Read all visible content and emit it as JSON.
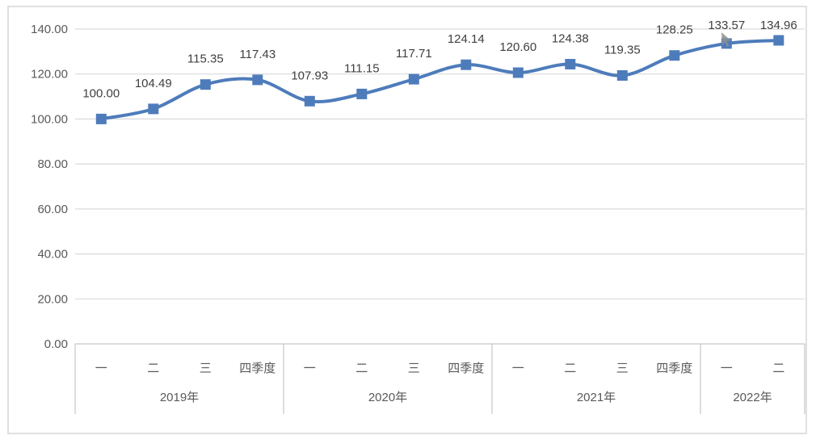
{
  "chart_data": {
    "type": "line",
    "title": "",
    "smooth": true,
    "marker": "square",
    "grid": true,
    "series": [
      {
        "values": [
          100.0,
          104.49,
          115.35,
          117.43,
          107.93,
          111.15,
          117.71,
          124.14,
          120.6,
          124.38,
          119.35,
          128.25,
          133.57,
          134.96
        ],
        "data_labels": [
          "100.00",
          "104.49",
          "115.35",
          "117.43",
          "107.93",
          "111.15",
          "117.71",
          "124.14",
          "120.60",
          "124.38",
          "119.35",
          "128.25",
          "133.57",
          "134.96"
        ]
      }
    ],
    "x_axis": {
      "quarter_labels": [
        "一",
        "二",
        "三",
        "四季度",
        "一",
        "二",
        "三",
        "四季度",
        "一",
        "二",
        "三",
        "四季度",
        "一",
        "二"
      ],
      "year_groups": [
        {
          "label": "2019年",
          "count": 4
        },
        {
          "label": "2020年",
          "count": 4
        },
        {
          "label": "2021年",
          "count": 4
        },
        {
          "label": "2022年",
          "count": 2
        }
      ]
    },
    "y_axis": {
      "min": 0,
      "max": 140,
      "step": 20,
      "tick_labels": [
        "0.00",
        "20.00",
        "40.00",
        "60.00",
        "80.00",
        "100.00",
        "120.00",
        "140.00"
      ]
    },
    "colors": {
      "line": "#4E7CBB",
      "marker": "#4E7CBB",
      "gridline": "#D9D9D9",
      "axis_table_line": "#C6C6C6",
      "chart_border": "#D9D9D9",
      "tick_text": "#595959",
      "data_label_text": "#404040",
      "background": "#FFFFFF",
      "cursor": "#8F8F8F"
    },
    "legend": {
      "visible": false
    }
  }
}
